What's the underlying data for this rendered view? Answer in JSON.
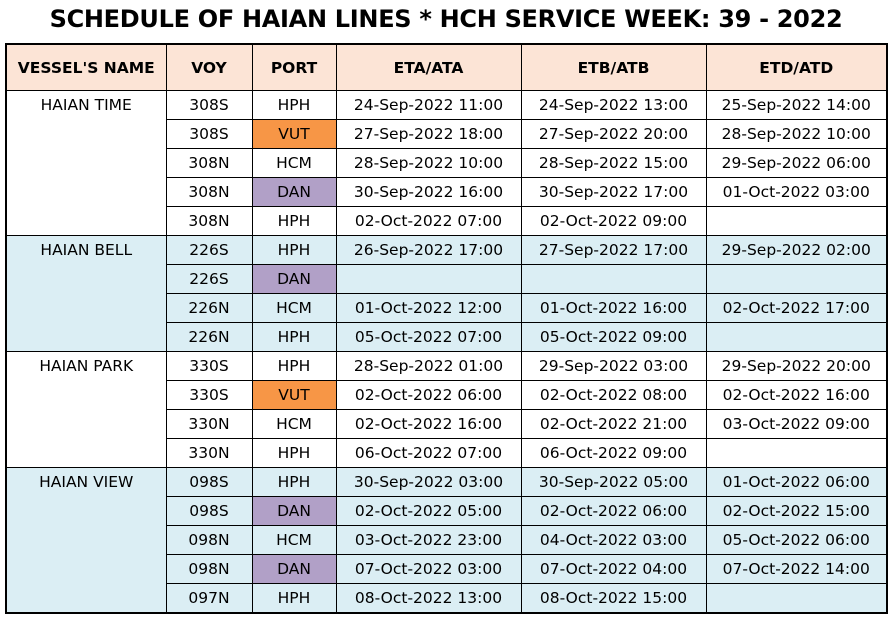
{
  "title": "SCHEDULE OF HAIAN LINES * HCH SERVICE WEEK: 39 - 2022",
  "columns": [
    "VESSEL'S NAME",
    "VOY",
    "PORT",
    "ETA/ATA",
    "ETB/ATB",
    "ETD/ATD"
  ],
  "colors": {
    "header_bg": "#fce4d6",
    "shaded_row_bg": "#dbeef4",
    "port_vut": "#f79646",
    "port_dan": "#b1a0c7"
  },
  "rows": [
    {
      "vessel": "HAIAN TIME",
      "voy": "308S",
      "port": "HPH",
      "eta": "24-Sep-2022 11:00",
      "etb": "24-Sep-2022 13:00",
      "etd": "25-Sep-2022 14:00",
      "shade": false
    },
    {
      "vessel": "",
      "voy": "308S",
      "port": "VUT",
      "eta": "27-Sep-2022 18:00",
      "etb": "27-Sep-2022 20:00",
      "etd": "28-Sep-2022 10:00",
      "shade": false
    },
    {
      "vessel": "",
      "voy": "308N",
      "port": "HCM",
      "eta": "28-Sep-2022 10:00",
      "etb": "28-Sep-2022 15:00",
      "etd": "29-Sep-2022 06:00",
      "shade": false
    },
    {
      "vessel": "",
      "voy": "308N",
      "port": "DAN",
      "eta": "30-Sep-2022 16:00",
      "etb": "30-Sep-2022 17:00",
      "etd": "01-Oct-2022 03:00",
      "shade": false
    },
    {
      "vessel": "",
      "voy": "308N",
      "port": "HPH",
      "eta": "02-Oct-2022 07:00",
      "etb": "02-Oct-2022 09:00",
      "etd": "",
      "shade": false
    },
    {
      "vessel": "HAIAN BELL",
      "voy": "226S",
      "port": "HPH",
      "eta": "26-Sep-2022 17:00",
      "etb": "27-Sep-2022 17:00",
      "etd": "29-Sep-2022 02:00",
      "shade": true
    },
    {
      "vessel": "",
      "voy": "226S",
      "port": "DAN",
      "eta": "",
      "etb": "",
      "etd": "",
      "shade": true
    },
    {
      "vessel": "",
      "voy": "226N",
      "port": "HCM",
      "eta": "01-Oct-2022 12:00",
      "etb": "01-Oct-2022 16:00",
      "etd": "02-Oct-2022 17:00",
      "shade": true
    },
    {
      "vessel": "",
      "voy": "226N",
      "port": "HPH",
      "eta": "05-Oct-2022 07:00",
      "etb": "05-Oct-2022 09:00",
      "etd": "",
      "shade": true
    },
    {
      "vessel": "HAIAN PARK",
      "voy": "330S",
      "port": "HPH",
      "eta": "28-Sep-2022 01:00",
      "etb": "29-Sep-2022 03:00",
      "etd": "29-Sep-2022 20:00",
      "shade": false
    },
    {
      "vessel": "",
      "voy": "330S",
      "port": "VUT",
      "eta": "02-Oct-2022 06:00",
      "etb": "02-Oct-2022 08:00",
      "etd": "02-Oct-2022 16:00",
      "shade": false
    },
    {
      "vessel": "",
      "voy": "330N",
      "port": "HCM",
      "eta": "02-Oct-2022 16:00",
      "etb": "02-Oct-2022 21:00",
      "etd": "03-Oct-2022 09:00",
      "shade": false
    },
    {
      "vessel": "",
      "voy": "330N",
      "port": "HPH",
      "eta": "06-Oct-2022 07:00",
      "etb": "06-Oct-2022 09:00",
      "etd": "",
      "shade": false
    },
    {
      "vessel": "HAIAN VIEW",
      "voy": "098S",
      "port": "HPH",
      "eta": "30-Sep-2022 03:00",
      "etb": "30-Sep-2022 05:00",
      "etd": "01-Oct-2022 06:00",
      "shade": true
    },
    {
      "vessel": "",
      "voy": "098S",
      "port": "DAN",
      "eta": "02-Oct-2022 05:00",
      "etb": "02-Oct-2022 06:00",
      "etd": "02-Oct-2022 15:00",
      "shade": true
    },
    {
      "vessel": "",
      "voy": "098N",
      "port": "HCM",
      "eta": "03-Oct-2022 23:00",
      "etb": "04-Oct-2022 03:00",
      "etd": "05-Oct-2022 06:00",
      "shade": true
    },
    {
      "vessel": "",
      "voy": "098N",
      "port": "DAN",
      "eta": "07-Oct-2022 03:00",
      "etb": "07-Oct-2022 04:00",
      "etd": "07-Oct-2022 14:00",
      "shade": true
    },
    {
      "vessel": "",
      "voy": "097N",
      "port": "HPH",
      "eta": "08-Oct-2022 13:00",
      "etb": "08-Oct-2022 15:00",
      "etd": "",
      "shade": true
    }
  ]
}
